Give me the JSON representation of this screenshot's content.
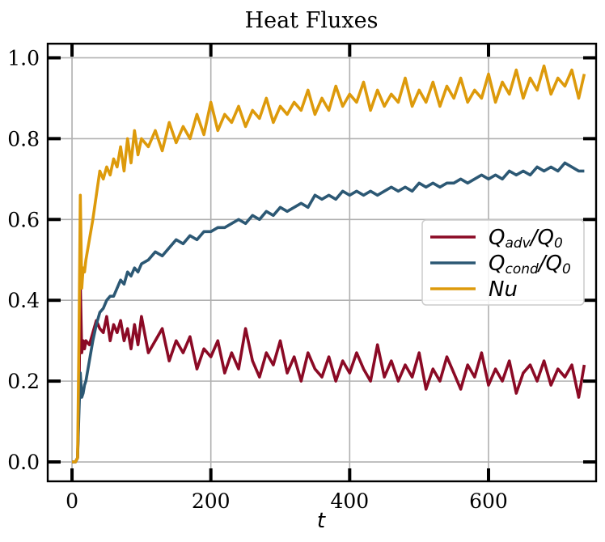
{
  "chart_data": {
    "type": "line",
    "title": "Heat Fluxes",
    "xlabel": "t",
    "ylabel": "",
    "xlim": [
      -35,
      755
    ],
    "ylim": [
      -0.048,
      1.035
    ],
    "xticks": [
      0,
      200,
      400,
      600
    ],
    "xtick_labels": [
      "0",
      "200",
      "400",
      "600"
    ],
    "yticks": [
      0.0,
      0.2,
      0.4,
      0.6,
      0.8,
      1.0
    ],
    "ytick_labels": [
      "0.0",
      "0.2",
      "0.4",
      "0.6",
      "0.8",
      "1.0"
    ],
    "grid": true,
    "legend_position": "center-right",
    "legend": [
      {
        "main": "Q",
        "sub": "adv",
        "rest": "/Q",
        "sub2": "0"
      },
      {
        "main": "Q",
        "sub": "cond",
        "rest": "/Q",
        "sub2": "0"
      },
      {
        "main": "Nu",
        "sub": "",
        "rest": "",
        "sub2": ""
      }
    ],
    "series": [
      {
        "color": "#8b0a25",
        "x": [
          0,
          5,
          8,
          10,
          12,
          14,
          16,
          18,
          20,
          25,
          30,
          35,
          40,
          45,
          50,
          55,
          60,
          65,
          70,
          75,
          80,
          85,
          90,
          95,
          100,
          110,
          120,
          130,
          140,
          150,
          160,
          170,
          180,
          190,
          200,
          210,
          220,
          230,
          240,
          250,
          260,
          270,
          280,
          290,
          300,
          310,
          320,
          330,
          340,
          350,
          360,
          370,
          380,
          390,
          400,
          410,
          420,
          430,
          440,
          450,
          460,
          470,
          480,
          490,
          500,
          510,
          520,
          530,
          540,
          550,
          560,
          570,
          580,
          590,
          600,
          610,
          620,
          630,
          640,
          650,
          660,
          670,
          680,
          690,
          700,
          710,
          720,
          730,
          738
        ],
        "y": [
          0.0,
          0.0,
          0.01,
          0.15,
          0.44,
          0.27,
          0.3,
          0.28,
          0.3,
          0.29,
          0.32,
          0.35,
          0.33,
          0.32,
          0.36,
          0.3,
          0.34,
          0.32,
          0.35,
          0.3,
          0.33,
          0.28,
          0.34,
          0.29,
          0.36,
          0.27,
          0.3,
          0.33,
          0.25,
          0.3,
          0.27,
          0.31,
          0.23,
          0.28,
          0.26,
          0.3,
          0.22,
          0.27,
          0.23,
          0.33,
          0.25,
          0.21,
          0.27,
          0.24,
          0.3,
          0.22,
          0.26,
          0.2,
          0.27,
          0.23,
          0.21,
          0.26,
          0.2,
          0.25,
          0.22,
          0.27,
          0.23,
          0.2,
          0.29,
          0.21,
          0.25,
          0.2,
          0.24,
          0.21,
          0.27,
          0.18,
          0.23,
          0.2,
          0.26,
          0.22,
          0.18,
          0.24,
          0.21,
          0.27,
          0.19,
          0.23,
          0.2,
          0.25,
          0.17,
          0.22,
          0.24,
          0.2,
          0.25,
          0.19,
          0.23,
          0.21,
          0.24,
          0.16,
          0.24
        ]
      },
      {
        "color": "#2c5874",
        "x": [
          0,
          5,
          8,
          10,
          12,
          14,
          16,
          18,
          20,
          25,
          30,
          35,
          40,
          45,
          50,
          55,
          60,
          65,
          70,
          75,
          80,
          85,
          90,
          95,
          100,
          110,
          120,
          130,
          140,
          150,
          160,
          170,
          180,
          190,
          200,
          210,
          220,
          230,
          240,
          250,
          260,
          270,
          280,
          290,
          300,
          310,
          320,
          330,
          340,
          350,
          360,
          370,
          380,
          390,
          400,
          410,
          420,
          430,
          440,
          450,
          460,
          470,
          480,
          490,
          500,
          510,
          520,
          530,
          540,
          550,
          560,
          570,
          580,
          590,
          600,
          610,
          620,
          630,
          640,
          650,
          660,
          670,
          680,
          690,
          700,
          710,
          720,
          730,
          738
        ],
        "y": [
          0.0,
          0.0,
          0.01,
          0.12,
          0.22,
          0.16,
          0.17,
          0.19,
          0.2,
          0.25,
          0.3,
          0.34,
          0.37,
          0.38,
          0.4,
          0.41,
          0.41,
          0.43,
          0.45,
          0.44,
          0.47,
          0.46,
          0.48,
          0.47,
          0.49,
          0.5,
          0.52,
          0.51,
          0.53,
          0.55,
          0.54,
          0.56,
          0.55,
          0.57,
          0.57,
          0.58,
          0.58,
          0.59,
          0.6,
          0.59,
          0.61,
          0.6,
          0.62,
          0.61,
          0.63,
          0.62,
          0.63,
          0.64,
          0.63,
          0.66,
          0.65,
          0.66,
          0.65,
          0.67,
          0.66,
          0.67,
          0.66,
          0.67,
          0.66,
          0.67,
          0.68,
          0.67,
          0.68,
          0.67,
          0.69,
          0.68,
          0.69,
          0.68,
          0.69,
          0.69,
          0.7,
          0.69,
          0.7,
          0.71,
          0.7,
          0.71,
          0.7,
          0.72,
          0.71,
          0.72,
          0.71,
          0.73,
          0.72,
          0.73,
          0.72,
          0.74,
          0.73,
          0.72,
          0.72
        ]
      },
      {
        "color": "#dd9a0b",
        "x": [
          0,
          5,
          8,
          10,
          12,
          14,
          16,
          18,
          20,
          25,
          30,
          35,
          40,
          45,
          50,
          55,
          60,
          65,
          70,
          75,
          80,
          85,
          90,
          95,
          100,
          110,
          120,
          130,
          140,
          150,
          160,
          170,
          180,
          190,
          200,
          210,
          220,
          230,
          240,
          250,
          260,
          270,
          280,
          290,
          300,
          310,
          320,
          330,
          340,
          350,
          360,
          370,
          380,
          390,
          400,
          410,
          420,
          430,
          440,
          450,
          460,
          470,
          480,
          490,
          500,
          510,
          520,
          530,
          540,
          550,
          560,
          570,
          580,
          590,
          600,
          610,
          620,
          630,
          640,
          650,
          660,
          670,
          680,
          690,
          700,
          710,
          720,
          730,
          738
        ],
        "y": [
          0.0,
          0.0,
          0.01,
          0.3,
          0.66,
          0.43,
          0.48,
          0.47,
          0.5,
          0.55,
          0.6,
          0.66,
          0.72,
          0.7,
          0.73,
          0.71,
          0.75,
          0.73,
          0.78,
          0.72,
          0.8,
          0.74,
          0.82,
          0.76,
          0.8,
          0.78,
          0.82,
          0.77,
          0.84,
          0.79,
          0.83,
          0.8,
          0.86,
          0.81,
          0.89,
          0.82,
          0.86,
          0.84,
          0.88,
          0.83,
          0.87,
          0.85,
          0.9,
          0.84,
          0.88,
          0.86,
          0.89,
          0.87,
          0.92,
          0.86,
          0.9,
          0.87,
          0.93,
          0.88,
          0.91,
          0.89,
          0.94,
          0.87,
          0.92,
          0.88,
          0.91,
          0.89,
          0.95,
          0.88,
          0.92,
          0.89,
          0.94,
          0.88,
          0.93,
          0.9,
          0.95,
          0.89,
          0.92,
          0.9,
          0.96,
          0.89,
          0.94,
          0.91,
          0.97,
          0.9,
          0.95,
          0.92,
          0.98,
          0.91,
          0.95,
          0.93,
          0.97,
          0.9,
          0.96
        ]
      }
    ]
  }
}
